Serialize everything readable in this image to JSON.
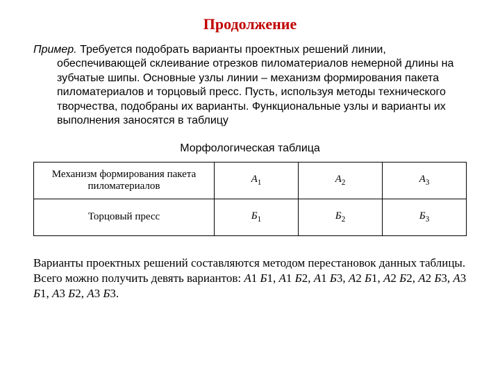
{
  "title": {
    "text": "Продолжение",
    "color": "#c00000",
    "fontsize": 22
  },
  "example": {
    "lead": "Пример.",
    "body": "Требуется подобрать варианты проектных решений линии, обеспечивающей склеивание отрезков пиломатериалов немерной длины на зубчатые шипы. Основные узлы линии – механизм формирования пакета пиломатериалов и торцовый пресс. Пусть, используя методы технического творчества, подобраны их варианты. Функциональные узлы и варианты их выполнения заносятся в таблицу",
    "fontsize": 16,
    "color": "#000000"
  },
  "table": {
    "caption": "Морфологическая таблица",
    "border_color": "#000000",
    "cell_fontsize": 15,
    "rows": [
      {
        "head": "Механизм формирования пакета пиломатериалов",
        "cells": [
          {
            "sym": "А",
            "sub": "1"
          },
          {
            "sym": "А",
            "sub": "2"
          },
          {
            "sym": "А",
            "sub": "3"
          }
        ]
      },
      {
        "head": "Торцовый пресс",
        "cells": [
          {
            "sym": "Б",
            "sub": "1"
          },
          {
            "sym": "Б",
            "sub": "2"
          },
          {
            "sym": "Б",
            "sub": "3"
          }
        ]
      }
    ],
    "col_widths": [
      "260px",
      "auto",
      "auto",
      "auto"
    ]
  },
  "footer": {
    "prefix": "Варианты проектных решений составляются методом перестановок данных таблицы. Всего можно получить девять вариантов: ",
    "variants": [
      {
        "a": "А",
        "an": "1",
        "b": "Б",
        "bn": "1"
      },
      {
        "a": "А",
        "an": "1",
        "b": "Б",
        "bn": "2"
      },
      {
        "a": "А",
        "an": "1",
        "b": "Б",
        "bn": "3"
      },
      {
        "a": "А",
        "an": "2",
        "b": "Б",
        "bn": "1"
      },
      {
        "a": "А",
        "an": "2",
        "b": "Б",
        "bn": "2"
      },
      {
        "a": "А",
        "an": "2",
        "b": "Б",
        "bn": "3"
      },
      {
        "a": "А",
        "an": "3",
        "b": "Б",
        "bn": "1"
      },
      {
        "a": "А",
        "an": "3",
        "b": "Б",
        "bn": "2"
      },
      {
        "a": "А",
        "an": "3",
        "b": "Б",
        "bn": "3"
      }
    ],
    "fontsize": 17
  },
  "colors": {
    "background": "#ffffff",
    "text": "#000000",
    "title": "#c00000"
  }
}
